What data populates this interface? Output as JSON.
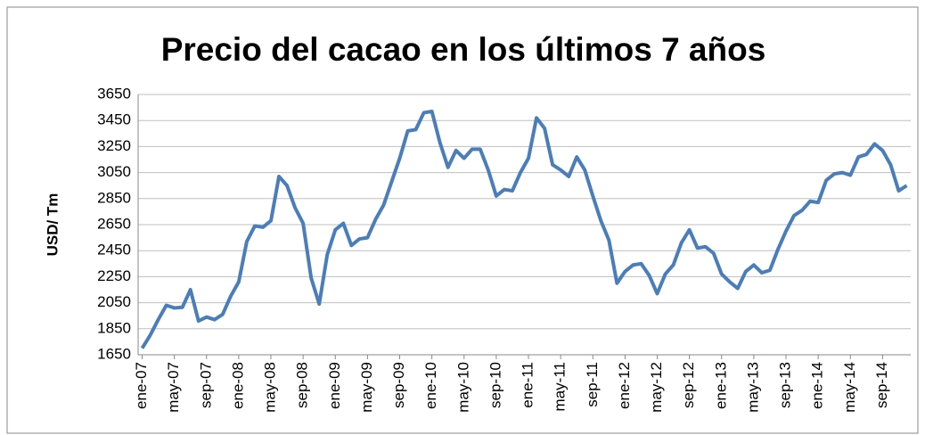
{
  "chart_data": {
    "type": "line",
    "title": "Precio del cacao en los últimos 7 años",
    "y_label": "USD/ Tm",
    "categories": [
      "ene-07",
      null,
      null,
      null,
      "may-07",
      null,
      null,
      null,
      "sep-07",
      null,
      null,
      null,
      "ene-08",
      null,
      null,
      null,
      "may-08",
      null,
      null,
      null,
      "sep-08",
      null,
      null,
      null,
      "ene-09",
      null,
      null,
      null,
      "may-09",
      null,
      null,
      null,
      "sep-09",
      null,
      null,
      null,
      "ene-10",
      null,
      null,
      null,
      "may-10",
      null,
      null,
      null,
      "sep-10",
      null,
      null,
      null,
      "ene-11",
      null,
      null,
      null,
      "may-11",
      null,
      null,
      null,
      "sep-11",
      null,
      null,
      null,
      "ene-12",
      null,
      null,
      null,
      "may-12",
      null,
      null,
      null,
      "sep-12",
      null,
      null,
      null,
      "ene-13",
      null,
      null,
      null,
      "may-13",
      null,
      null,
      null,
      "sep-13",
      null,
      null,
      null,
      "ene-14",
      null,
      null,
      null,
      "may-14",
      null,
      null,
      null,
      "sep-14",
      null,
      null,
      null
    ],
    "values": [
      1700,
      1800,
      1920,
      2030,
      2010,
      2015,
      2150,
      1910,
      1940,
      1920,
      1960,
      2100,
      2210,
      2520,
      2640,
      2630,
      2680,
      3020,
      2950,
      2780,
      2660,
      2240,
      2040,
      2420,
      2610,
      2660,
      2490,
      2540,
      2550,
      2690,
      2800,
      2980,
      3160,
      3370,
      3380,
      3510,
      3520,
      3280,
      3090,
      3220,
      3160,
      3230,
      3230,
      3070,
      2870,
      2920,
      2910,
      3050,
      3160,
      3470,
      3390,
      3110,
      3070,
      3020,
      3170,
      3070,
      2870,
      2680,
      2530,
      2200,
      2290,
      2340,
      2350,
      2260,
      2120,
      2270,
      2340,
      2510,
      2610,
      2470,
      2480,
      2430,
      2270,
      2210,
      2160,
      2290,
      2340,
      2280,
      2300,
      2460,
      2600,
      2720,
      2760,
      2830,
      2820,
      2990,
      3040,
      3050,
      3030,
      3170,
      3190,
      3270,
      3220,
      3110,
      2910,
      2950
    ],
    "color": "#4a7ebb",
    "ylim": [
      1650,
      3650
    ],
    "yticks": [
      1650,
      1850,
      2050,
      2250,
      2450,
      2650,
      2850,
      3050,
      3250,
      3450,
      3650
    ],
    "grid": true
  }
}
